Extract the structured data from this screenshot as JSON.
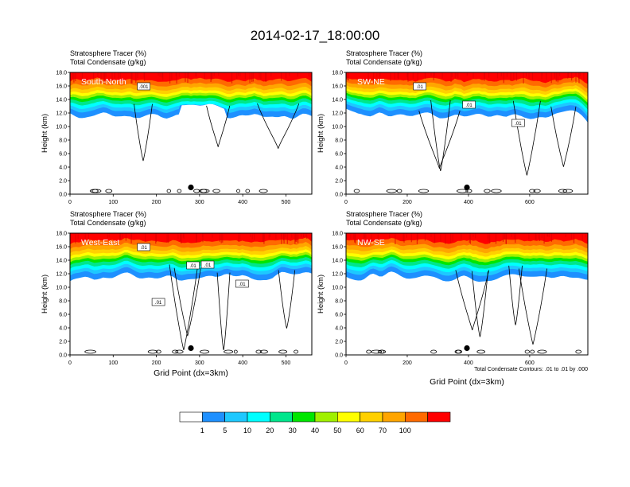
{
  "page_title": "2014-02-17_18:00:00",
  "colors": {
    "fill_levels": [
      "#ffffff",
      "#1e90ff",
      "#1ec8ff",
      "#00ffff",
      "#00e68c",
      "#00e600",
      "#a0f000",
      "#ffff00",
      "#ffd000",
      "#ffa500",
      "#ff6a00",
      "#ff0000"
    ],
    "contour": "#000000"
  },
  "colorbar": {
    "labels": [
      "1",
      "5",
      "10",
      "20",
      "30",
      "40",
      "50",
      "60",
      "70",
      "100"
    ]
  },
  "chart_data": [
    {
      "type": "heatmap",
      "title_line1": "Stratosphere Tracer   (%)",
      "title_line2": "Total Condensate   (g/kg)",
      "panel_label": "South-North",
      "xlabel": "",
      "ylabel": "Height (km)",
      "xlim": [
        0,
        560
      ],
      "ylim": [
        0,
        18
      ],
      "x_ticks": [
        "0",
        "100",
        "200",
        "300",
        "400",
        "500"
      ],
      "y_ticks": [
        "0.0",
        "2.0",
        "4.0",
        "6.0",
        "8.0",
        "10.0",
        "12.0",
        "14.0",
        "16.0",
        "18.0"
      ],
      "marker_x": 280,
      "marker_y": 1.0,
      "contour_labels": [
        ".001"
      ],
      "footnote": ""
    },
    {
      "type": "heatmap",
      "title_line1": "Stratosphere Tracer   (%)",
      "title_line2": "Total Condensate   (g/kg)",
      "panel_label": "SW-NE",
      "xlabel": "",
      "ylabel": "Height (km)",
      "xlim": [
        0,
        790
      ],
      "ylim": [
        0,
        18
      ],
      "x_ticks": [
        "0",
        "200",
        "400",
        "600"
      ],
      "y_ticks": [
        "0.0",
        "2.0",
        "4.0",
        "6.0",
        "8.0",
        "10.0",
        "12.0",
        "14.0",
        "16.0",
        "18.0"
      ],
      "marker_x": 395,
      "marker_y": 1.0,
      "contour_labels": [
        ".01",
        ".01",
        ".01"
      ],
      "footnote": ""
    },
    {
      "type": "heatmap",
      "title_line1": "Stratosphere Tracer   (%)",
      "title_line2": "Total Condensate   (g/kg)",
      "panel_label": "West-East",
      "xlabel": "Grid Point (dx=3km)",
      "ylabel": "Height (km)",
      "xlim": [
        0,
        560
      ],
      "ylim": [
        0,
        18
      ],
      "x_ticks": [
        "0",
        "100",
        "200",
        "300",
        "400",
        "500"
      ],
      "y_ticks": [
        "0.0",
        "2.0",
        "4.0",
        "6.0",
        "8.0",
        "10.0",
        "12.0",
        "14.0",
        "16.0",
        "18.0"
      ],
      "marker_x": 280,
      "marker_y": 1.0,
      "contour_labels": [
        ".01",
        ".01",
        ".01",
        ".01",
        ".01"
      ],
      "footnote": ""
    },
    {
      "type": "heatmap",
      "title_line1": "Stratosphere Tracer   (%)",
      "title_line2": "Total Condensate   (g/kg)",
      "panel_label": "NW-SE",
      "xlabel": "Grid Point (dx=3km)",
      "ylabel": "Height (km)",
      "xlim": [
        0,
        790
      ],
      "ylim": [
        0,
        18
      ],
      "x_ticks": [
        "0",
        "200",
        "400",
        "600"
      ],
      "y_ticks": [
        "0.0",
        "2.0",
        "4.0",
        "6.0",
        "8.0",
        "10.0",
        "12.0",
        "14.0",
        "16.0",
        "18.0"
      ],
      "marker_x": 395,
      "marker_y": 1.0,
      "contour_labels": [],
      "footnote": "Total Condensate Contours: .01 to .01 by .000"
    }
  ]
}
